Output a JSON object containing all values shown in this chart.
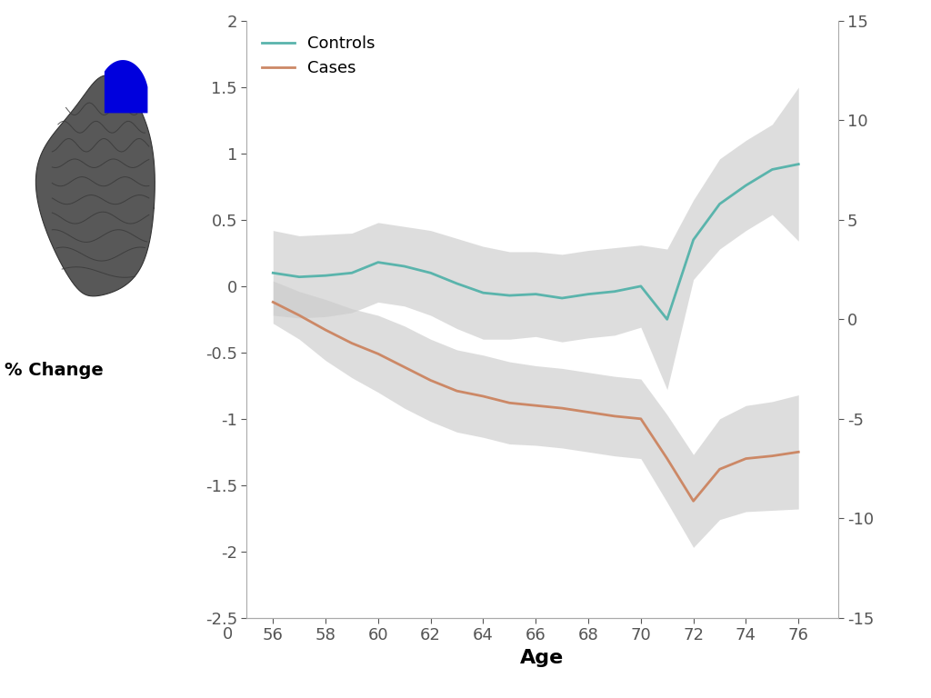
{
  "age": [
    56,
    57,
    58,
    59,
    60,
    61,
    62,
    63,
    64,
    65,
    66,
    67,
    68,
    69,
    70,
    71,
    72,
    73,
    74,
    75,
    76
  ],
  "controls_mean": [
    0.1,
    0.07,
    0.08,
    0.1,
    0.18,
    0.15,
    0.1,
    0.02,
    -0.05,
    -0.07,
    -0.06,
    -0.09,
    -0.06,
    -0.04,
    0.0,
    -0.25,
    0.35,
    0.62,
    0.76,
    0.88,
    0.92
  ],
  "controls_upper": [
    0.42,
    0.38,
    0.39,
    0.4,
    0.48,
    0.45,
    0.42,
    0.36,
    0.3,
    0.26,
    0.26,
    0.24,
    0.27,
    0.29,
    0.31,
    0.28,
    0.65,
    0.96,
    1.1,
    1.22,
    1.5
  ],
  "controls_lower": [
    -0.22,
    -0.24,
    -0.23,
    -0.2,
    -0.12,
    -0.15,
    -0.22,
    -0.32,
    -0.4,
    -0.4,
    -0.38,
    -0.42,
    -0.39,
    -0.37,
    -0.31,
    -0.78,
    0.05,
    0.28,
    0.42,
    0.54,
    0.34
  ],
  "cases_mean": [
    -0.12,
    -0.22,
    -0.33,
    -0.43,
    -0.51,
    -0.61,
    -0.71,
    -0.79,
    -0.83,
    -0.88,
    -0.9,
    -0.92,
    -0.95,
    -0.98,
    -1.0,
    -1.3,
    -1.62,
    -1.38,
    -1.3,
    -1.28,
    -1.25
  ],
  "cases_upper": [
    0.04,
    -0.04,
    -0.1,
    -0.17,
    -0.22,
    -0.3,
    -0.4,
    -0.48,
    -0.52,
    -0.57,
    -0.6,
    -0.62,
    -0.65,
    -0.68,
    -0.7,
    -0.97,
    -1.27,
    -1.0,
    -0.9,
    -0.87,
    -0.82
  ],
  "cases_lower": [
    -0.28,
    -0.4,
    -0.56,
    -0.69,
    -0.8,
    -0.92,
    -1.02,
    -1.1,
    -1.14,
    -1.19,
    -1.2,
    -1.22,
    -1.25,
    -1.28,
    -1.3,
    -1.63,
    -1.97,
    -1.76,
    -1.7,
    -1.69,
    -1.68
  ],
  "controls_color": "#5ab4ac",
  "cases_color": "#cc8866",
  "ci_color": "#cccccc",
  "ci_alpha": 0.65,
  "ylim_left": [
    -2.5,
    2.0
  ],
  "ylim_right": [
    -15,
    15
  ],
  "yticks_left": [
    -2.5,
    -2.0,
    -1.5,
    -1.0,
    -0.5,
    0.0,
    0.5,
    1.0,
    1.5,
    2.0
  ],
  "yticks_right": [
    -15,
    -10,
    -5,
    0,
    5,
    10,
    15
  ],
  "xlabel": "Age",
  "ylabel_left": "% Change",
  "xticks": [
    56,
    58,
    60,
    62,
    64,
    66,
    68,
    70,
    72,
    74,
    76
  ],
  "legend_controls": "Controls",
  "legend_cases": "Cases",
  "background_color": "#ffffff",
  "line_width": 2.0,
  "font_size": 13,
  "brain_body_color": "#585858",
  "brain_edge_color": "#333333",
  "brain_sulci_color": "#3a3a3a",
  "blue_highlight_color": "#0000dd",
  "axis_spine_color": "#aaaaaa",
  "tick_color": "#555555"
}
